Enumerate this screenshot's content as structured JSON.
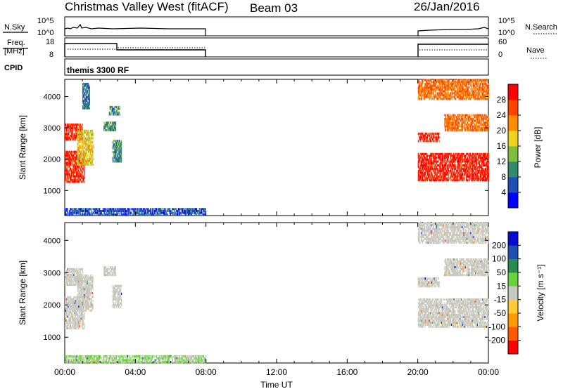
{
  "header": {
    "title": "Christmas Valley West (fitACF)",
    "beam": "Beam 03",
    "date": "26/Jan/2016"
  },
  "top_panels": {
    "nsky": {
      "label": "N.Sky",
      "tick_top": "10^5",
      "tick_bottom": "10^0",
      "right_label": "N.Search",
      "right_tick_top": "10^5",
      "right_tick_bottom": "10^0"
    },
    "freq": {
      "label_line1": "Freq.",
      "label_line2": "[MHz]",
      "tick_top": "18",
      "tick_bottom": "8",
      "right_label": "Nave",
      "right_tick_top": "60",
      "right_tick_bottom": "0"
    },
    "cpid": {
      "label": "CPID",
      "value": "themis 3300 RF"
    }
  },
  "colors": {
    "power_scale": [
      "#0000ff",
      "#1f50b4",
      "#338a6c",
      "#7fbf3f",
      "#f0d21e",
      "#ff8c00",
      "#ff4400",
      "#ff0000"
    ],
    "velocity_scale": [
      "#ff0000",
      "#ff5a00",
      "#ff9a00",
      "#ffcc33",
      "#c8c8be",
      "#6ad23c",
      "#2a8c50",
      "#1f4fb0",
      "#0a0ad2"
    ]
  },
  "chart_data": [
    {
      "type": "heatmap",
      "name": "power-panel",
      "ylabel": "Slant Range [km]",
      "xlabel": "",
      "yticks": [
        "1000",
        "2000",
        "3000",
        "4000"
      ],
      "ylim": [
        200,
        4550
      ],
      "xlim": [
        0,
        24
      ],
      "colorbar": {
        "label": "Power [dB]",
        "ticks": [
          "4",
          "8",
          "12",
          "16",
          "20",
          "24",
          "28"
        ],
        "range": [
          0,
          32
        ]
      },
      "regions": [
        {
          "t0": 0.0,
          "t1": 1.1,
          "r0": 1250,
          "r1": 2250,
          "v": 28
        },
        {
          "t0": 0.0,
          "t1": 1.0,
          "r0": 2600,
          "r1": 3100,
          "v": 28
        },
        {
          "t0": 0.7,
          "t1": 1.6,
          "r0": 1800,
          "r1": 2900,
          "v": 18
        },
        {
          "t0": 1.0,
          "t1": 1.4,
          "r0": 3600,
          "r1": 4400,
          "v": 8
        },
        {
          "t0": 2.2,
          "t1": 2.9,
          "r0": 2900,
          "r1": 3200,
          "v": 10
        },
        {
          "t0": 2.7,
          "t1": 3.2,
          "r0": 1900,
          "r1": 2600,
          "v": 10
        },
        {
          "t0": 2.5,
          "t1": 3.1,
          "r0": 3400,
          "r1": 3700,
          "v": 10
        },
        {
          "t0": 0.0,
          "t1": 8.0,
          "r0": 200,
          "r1": 420,
          "v": 6
        },
        {
          "t0": 20.0,
          "t1": 24.0,
          "r0": 1300,
          "r1": 2200,
          "v": 29
        },
        {
          "t0": 20.0,
          "t1": 21.2,
          "r0": 2550,
          "r1": 2800,
          "v": 28
        },
        {
          "t0": 21.5,
          "t1": 24.0,
          "r0": 2900,
          "r1": 3400,
          "v": 24
        },
        {
          "t0": 20.0,
          "t1": 24.0,
          "r0": 3900,
          "r1": 4550,
          "v": 24
        }
      ]
    },
    {
      "type": "heatmap",
      "name": "velocity-panel",
      "ylabel": "Slant Range [km]",
      "xlabel": "Time UT",
      "yticks": [
        "1000",
        "2000",
        "3000",
        "4000"
      ],
      "xticks": [
        "00:00",
        "04:00",
        "08:00",
        "12:00",
        "16:00",
        "20:00",
        "00:00"
      ],
      "ylim": [
        200,
        4550
      ],
      "xlim": [
        0,
        24
      ],
      "colorbar": {
        "label": "Velocity [m s⁻¹]",
        "ticks": [
          "-200",
          "-100",
          "-50",
          "-15",
          "15",
          "50",
          "100",
          "200"
        ],
        "range": [
          -250,
          250
        ]
      },
      "regions": [
        {
          "t0": 0.0,
          "t1": 1.1,
          "r0": 1250,
          "r1": 2250,
          "v": 0
        },
        {
          "t0": 0.0,
          "t1": 1.0,
          "r0": 2600,
          "r1": 3100,
          "v": 0
        },
        {
          "t0": 0.7,
          "t1": 1.6,
          "r0": 1800,
          "r1": 2900,
          "v": 0
        },
        {
          "t0": 2.2,
          "t1": 2.9,
          "r0": 2900,
          "r1": 3200,
          "v": 0
        },
        {
          "t0": 2.7,
          "t1": 3.2,
          "r0": 1900,
          "r1": 2600,
          "v": 0
        },
        {
          "t0": 0.0,
          "t1": 8.0,
          "r0": 200,
          "r1": 420,
          "v": 30
        },
        {
          "t0": 20.0,
          "t1": 24.0,
          "r0": 1300,
          "r1": 2200,
          "v": 0
        },
        {
          "t0": 20.0,
          "t1": 21.2,
          "r0": 2550,
          "r1": 2800,
          "v": 0
        },
        {
          "t0": 21.5,
          "t1": 24.0,
          "r0": 2900,
          "r1": 3400,
          "v": 0
        },
        {
          "t0": 20.0,
          "t1": 24.0,
          "r0": 3900,
          "r1": 4550,
          "v": 0
        }
      ]
    }
  ]
}
